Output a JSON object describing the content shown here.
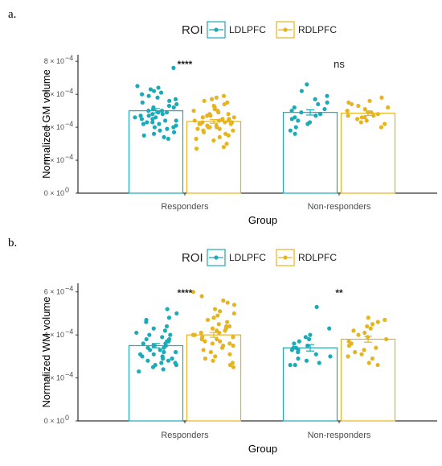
{
  "chart_data": [
    {
      "type": "bar",
      "panel_label": "a.",
      "legend": {
        "title": "ROI",
        "entries": [
          "LDLPFC",
          "RDLPFC"
        ],
        "position": "top"
      },
      "colors": {
        "LDLPFC": "#1aabb8",
        "RDLPFC": "#e6b41e"
      },
      "categories": [
        "Responders",
        "Non-responders"
      ],
      "xlabel": "Group",
      "ylabel": "Normalized GM volume",
      "y_ticks": [
        {
          "value": 0,
          "label": "0 × 10",
          "exp": "0"
        },
        {
          "value": 0.0002,
          "label": "2 × 10",
          "exp": "−4"
        },
        {
          "value": 0.0004,
          "label": "4 × 10",
          "exp": "−4"
        },
        {
          "value": 0.0006,
          "label": "6 × 10",
          "exp": "−4"
        },
        {
          "value": 0.0008,
          "label": "8 × 10",
          "exp": "−4"
        }
      ],
      "ylim": [
        0,
        0.00084
      ],
      "grid": false,
      "series": [
        {
          "name": "LDLPFC",
          "values": [
            0.0005,
            0.00049
          ],
          "errors": [
            1.3e-05,
            1.6e-05
          ]
        },
        {
          "name": "RDLPFC",
          "values": [
            0.000435,
            0.000485
          ],
          "errors": [
            1.1e-05,
            1.4e-05
          ]
        }
      ],
      "significance": [
        "****",
        "ns"
      ],
      "points": {
        "Responders": {
          "LDLPFC": [
            0.00076,
            0.00065,
            0.00064,
            0.00063,
            0.00062,
            0.00061,
            0.0006,
            0.00059,
            0.00058,
            0.00057,
            0.00056,
            0.00055,
            0.00054,
            0.00053,
            0.00052,
            0.00052,
            0.00051,
            0.0005,
            0.0005,
            0.00049,
            0.00049,
            0.00048,
            0.00048,
            0.00047,
            0.00047,
            0.00046,
            0.00046,
            0.00045,
            0.00045,
            0.00044,
            0.00044,
            0.00043,
            0.00043,
            0.00042,
            0.00042,
            0.00041,
            0.0004,
            0.0004,
            0.00039,
            0.00038,
            0.00037,
            0.00036,
            0.00035,
            0.00034,
            0.00033
          ],
          "RDLPFC": [
            0.00059,
            0.00058,
            0.00057,
            0.00056,
            0.00055,
            0.00054,
            0.00053,
            0.00052,
            0.00051,
            0.0005,
            0.0005,
            0.00049,
            0.00048,
            0.00048,
            0.00047,
            0.00047,
            0.00046,
            0.00046,
            0.00045,
            0.00045,
            0.00044,
            0.00044,
            0.00044,
            0.00043,
            0.00043,
            0.00043,
            0.00042,
            0.00042,
            0.00042,
            0.00041,
            0.00041,
            0.0004,
            0.0004,
            0.0004,
            0.00039,
            0.00039,
            0.00038,
            0.00038,
            0.00037,
            0.00036,
            0.00035,
            0.00034,
            0.00033,
            0.00032,
            0.0003,
            0.00028,
            0.00027
          ]
        },
        "Non-responders": {
          "LDLPFC": [
            0.00066,
            0.00062,
            0.00059,
            0.00057,
            0.00055,
            0.00054,
            0.00052,
            0.00051,
            0.0005,
            0.00049,
            0.00048,
            0.00047,
            0.00046,
            0.00045,
            0.00044,
            0.00043,
            0.00042,
            0.0004,
            0.00038,
            0.00036
          ],
          "RDLPFC": [
            0.00058,
            0.00056,
            0.00055,
            0.00054,
            0.00053,
            0.00052,
            0.00051,
            0.0005,
            0.00049,
            0.00049,
            0.00048,
            0.00047,
            0.00047,
            0.00046,
            0.00046,
            0.00045,
            0.00044,
            0.00043,
            0.00042,
            0.0004
          ]
        }
      }
    },
    {
      "type": "bar",
      "panel_label": "b.",
      "legend": {
        "title": "ROI",
        "entries": [
          "LDLPFC",
          "RDLPFC"
        ],
        "position": "top"
      },
      "colors": {
        "LDLPFC": "#1aabb8",
        "RDLPFC": "#e6b41e"
      },
      "categories": [
        "Responders",
        "Non-responders"
      ],
      "xlabel": "Group",
      "ylabel": "Normalized WM volume",
      "y_ticks": [
        {
          "value": 0,
          "label": "0 × 10",
          "exp": "0"
        },
        {
          "value": 0.0002,
          "label": "2 × 10",
          "exp": "−4"
        },
        {
          "value": 0.0004,
          "label": "4 × 10",
          "exp": "−4"
        },
        {
          "value": 0.0006,
          "label": "6 × 10",
          "exp": "−4"
        }
      ],
      "ylim": [
        0,
        0.00064
      ],
      "grid": false,
      "series": [
        {
          "name": "LDLPFC",
          "values": [
            0.00035,
            0.00034
          ],
          "errors": [
            1e-05,
            1.5e-05
          ]
        },
        {
          "name": "RDLPFC",
          "values": [
            0.0004,
            0.00038
          ],
          "errors": [
            1.1e-05,
            1.4e-05
          ]
        }
      ],
      "significance": [
        "****",
        "**"
      ],
      "points": {
        "Responders": {
          "LDLPFC": [
            0.00052,
            0.0005,
            0.00048,
            0.00047,
            0.00046,
            0.00044,
            0.00043,
            0.00042,
            0.00041,
            0.0004,
            0.0004,
            0.00039,
            0.00038,
            0.00038,
            0.00037,
            0.00037,
            0.00036,
            0.00036,
            0.00035,
            0.00035,
            0.00034,
            0.00034,
            0.00033,
            0.00033,
            0.00032,
            0.00032,
            0.00031,
            0.00031,
            0.0003,
            0.0003,
            0.00029,
            0.00029,
            0.00028,
            0.00028,
            0.00027,
            0.00027,
            0.00026,
            0.00026,
            0.00025,
            0.00024,
            0.00023
          ],
          "RDLPFC": [
            0.0006,
            0.00058,
            0.00056,
            0.00055,
            0.00054,
            0.00052,
            0.00051,
            0.0005,
            0.00049,
            0.00048,
            0.00047,
            0.00046,
            0.00045,
            0.00044,
            0.00044,
            0.00043,
            0.00043,
            0.00042,
            0.00042,
            0.00041,
            0.00041,
            0.0004,
            0.0004,
            0.00039,
            0.00039,
            0.00038,
            0.00038,
            0.00037,
            0.00037,
            0.00036,
            0.00036,
            0.00035,
            0.00035,
            0.00034,
            0.00033,
            0.00032,
            0.00031,
            0.0003,
            0.00029,
            0.00028,
            0.00027,
            0.00026,
            0.00025
          ]
        },
        "Non-responders": {
          "LDLPFC": [
            0.00053,
            0.00043,
            0.0004,
            0.00039,
            0.00038,
            0.00037,
            0.00036,
            0.00035,
            0.00034,
            0.00034,
            0.00033,
            0.00033,
            0.00032,
            0.00031,
            0.0003,
            0.00029,
            0.00028,
            0.00027,
            0.00026,
            0.00026
          ],
          "RDLPFC": [
            0.00048,
            0.00047,
            0.00046,
            0.00045,
            0.00044,
            0.00043,
            0.00042,
            0.00041,
            0.0004,
            0.00039,
            0.00038,
            0.00037,
            0.00036,
            0.00035,
            0.00034,
            0.00033,
            0.00032,
            0.00031,
            0.0003,
            0.00029,
            0.00027,
            0.00026
          ]
        }
      }
    }
  ]
}
